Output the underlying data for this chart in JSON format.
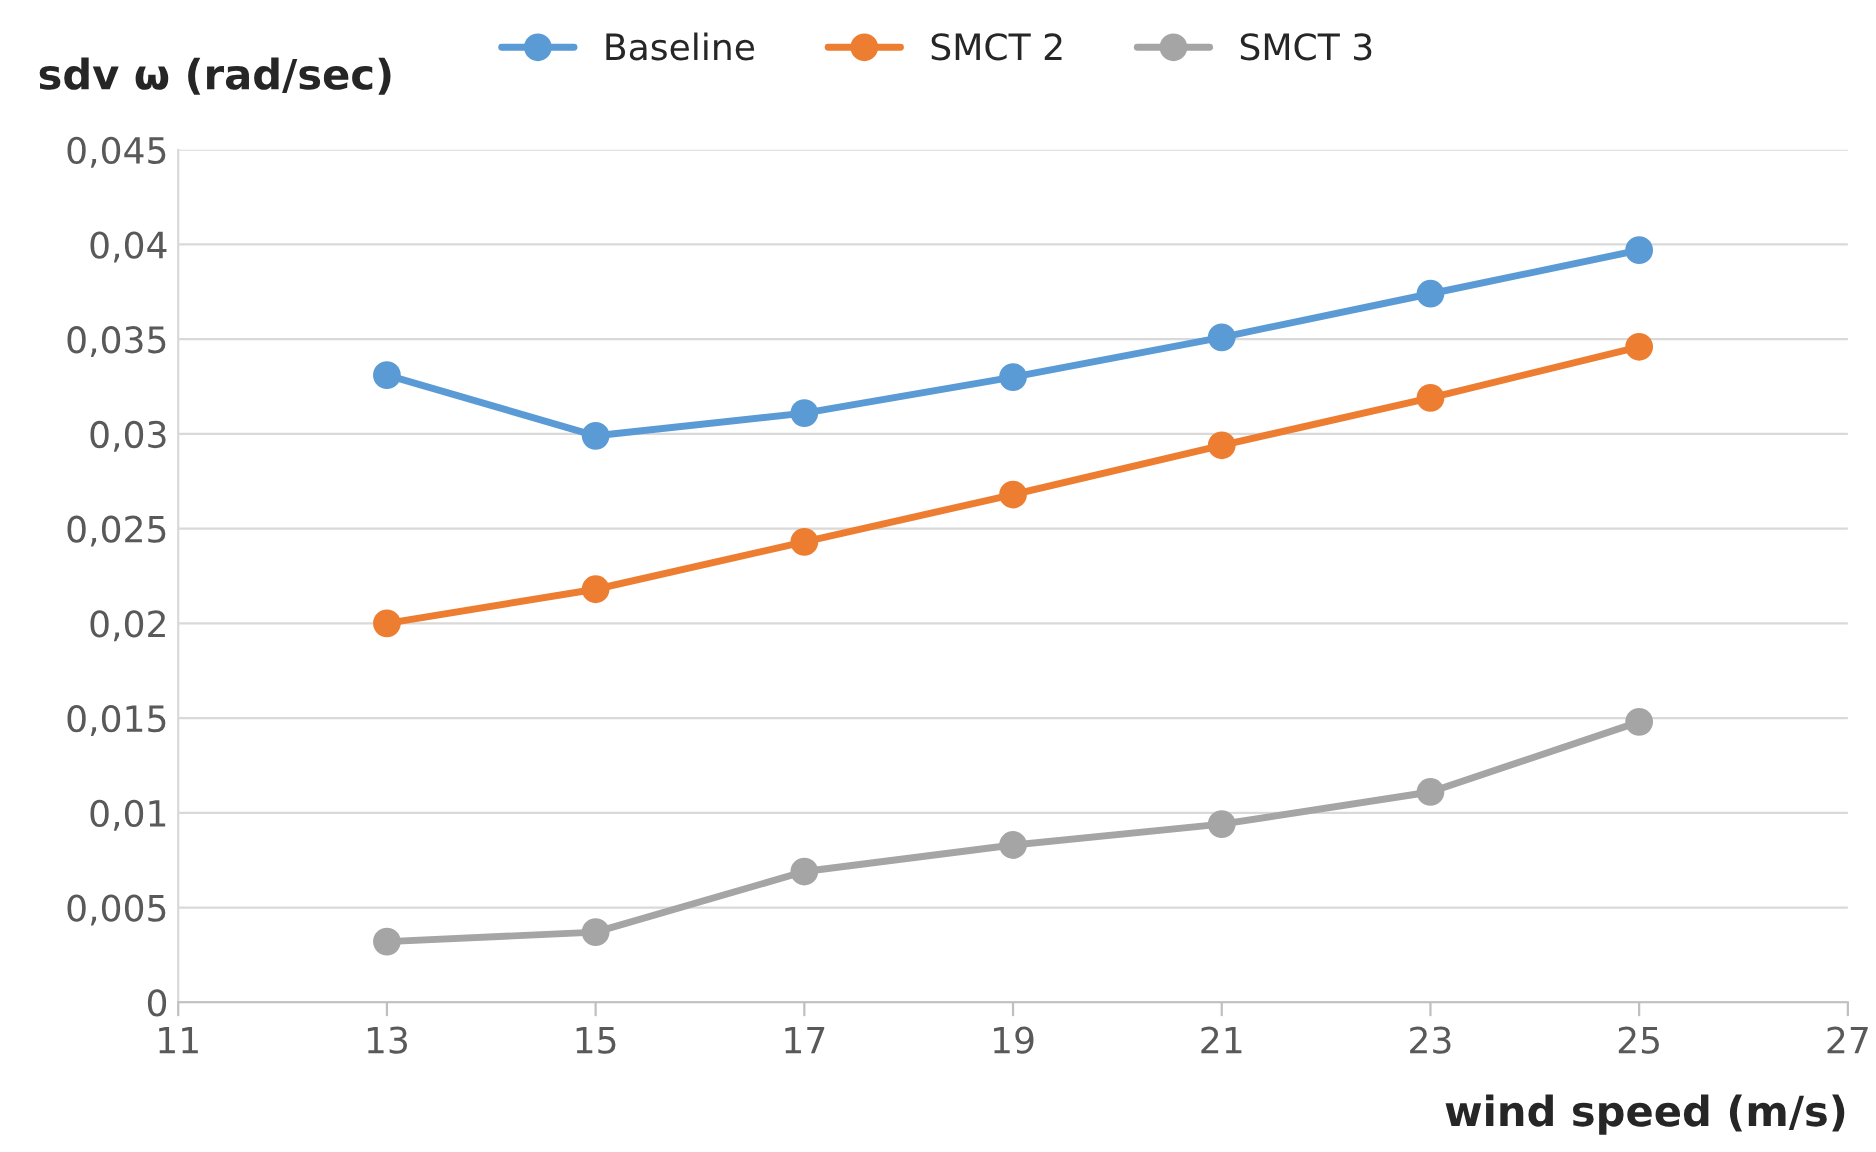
{
  "chart_data": {
    "type": "line",
    "xlabel": "wind speed (m/s)",
    "ylabel": "sdv ω (rad/sec)",
    "x": [
      13,
      15,
      17,
      19,
      21,
      23,
      25
    ],
    "series": [
      {
        "name": "Baseline",
        "color": "#5b9bd5",
        "values": [
          0.0331,
          0.0299,
          0.0311,
          0.033,
          0.0351,
          0.0374,
          0.0397
        ]
      },
      {
        "name": "SMCT 2",
        "color": "#ed7d31",
        "values": [
          0.02,
          0.0218,
          0.0243,
          0.0268,
          0.0294,
          0.0319,
          0.0346
        ]
      },
      {
        "name": "SMCT 3",
        "color": "#a5a5a5",
        "values": [
          0.0032,
          0.0037,
          0.0069,
          0.0083,
          0.0094,
          0.0111,
          0.0148
        ]
      }
    ],
    "xlim": [
      11,
      27
    ],
    "xticks": [
      11,
      13,
      15,
      17,
      19,
      21,
      23,
      25,
      27
    ],
    "ylim": [
      0,
      0.045
    ],
    "yticks": [
      {
        "value": 0,
        "label": "0"
      },
      {
        "value": 0.005,
        "label": "0,005"
      },
      {
        "value": 0.01,
        "label": "0,01"
      },
      {
        "value": 0.015,
        "label": "0,015"
      },
      {
        "value": 0.02,
        "label": "0,02"
      },
      {
        "value": 0.025,
        "label": "0,025"
      },
      {
        "value": 0.03,
        "label": "0,03"
      },
      {
        "value": 0.035,
        "label": "0,035"
      },
      {
        "value": 0.04,
        "label": "0,04"
      },
      {
        "value": 0.045,
        "label": "0,045"
      }
    ],
    "grid": "y",
    "legend": "top",
    "marker": "circle",
    "line_style": "solid"
  }
}
